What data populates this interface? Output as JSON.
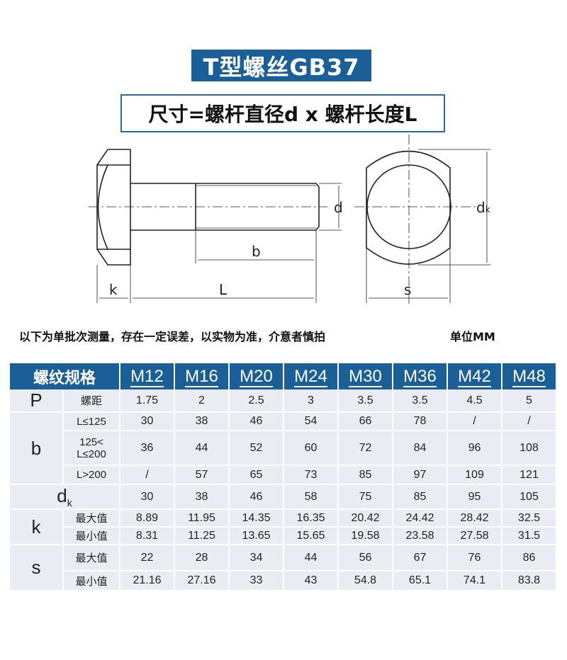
{
  "title": "T型螺丝GB37",
  "subtitle": "尺寸=螺杆直径d x 螺杆长度L",
  "drawing": {
    "labels": {
      "d": "d",
      "dk_main": "d",
      "dk_sub": "k",
      "b": "b",
      "k": "k",
      "L": "L",
      "s": "s"
    }
  },
  "note": "以下为单批次测量，存在一定误差，以实物为准，介意者慎拍",
  "unit": "单位MM",
  "table": {
    "spec_header": "螺纹规格",
    "sizes": [
      "M12",
      "M16",
      "M20",
      "M24",
      "M30",
      "M36",
      "M42",
      "M48"
    ],
    "rows": {
      "P": {
        "label": "P",
        "sub": "螺距",
        "values": [
          "1.75",
          "2",
          "2.5",
          "3",
          "3.5",
          "3.5",
          "4.5",
          "5"
        ]
      },
      "b": {
        "label": "b",
        "rows": [
          {
            "sub": "L≤125",
            "values": [
              "30",
              "38",
              "46",
              "54",
              "66",
              "78",
              "/",
              "/"
            ]
          },
          {
            "sub1": "125<",
            "sub2": "L≤200",
            "values": [
              "36",
              "44",
              "52",
              "60",
              "72",
              "84",
              "96",
              "108"
            ]
          },
          {
            "sub": "L>200",
            "values": [
              "/",
              "57",
              "65",
              "73",
              "85",
              "97",
              "109",
              "121"
            ]
          }
        ]
      },
      "dk": {
        "label": "d",
        "label_sub": "k",
        "values": [
          "30",
          "38",
          "46",
          "58",
          "75",
          "85",
          "95",
          "105"
        ]
      },
      "k": {
        "label": "k",
        "rows": [
          {
            "sub": "最大值",
            "values": [
              "8.89",
              "11.95",
              "14.35",
              "16.35",
              "20.42",
              "24.42",
              "28.42",
              "32.5"
            ]
          },
          {
            "sub": "最小值",
            "values": [
              "8.31",
              "11.25",
              "13.65",
              "15.65",
              "19.58",
              "23.58",
              "27.58",
              "31.5"
            ]
          }
        ]
      },
      "s": {
        "label": "s",
        "rows": [
          {
            "sub": "最大值",
            "values": [
              "22",
              "28",
              "34",
              "44",
              "56",
              "67",
              "76",
              "86"
            ]
          },
          {
            "sub": "最小值",
            "values": [
              "21.16",
              "27.16",
              "33",
              "43",
              "54.8",
              "65.1",
              "74.1",
              "83.8"
            ]
          }
        ]
      }
    }
  }
}
